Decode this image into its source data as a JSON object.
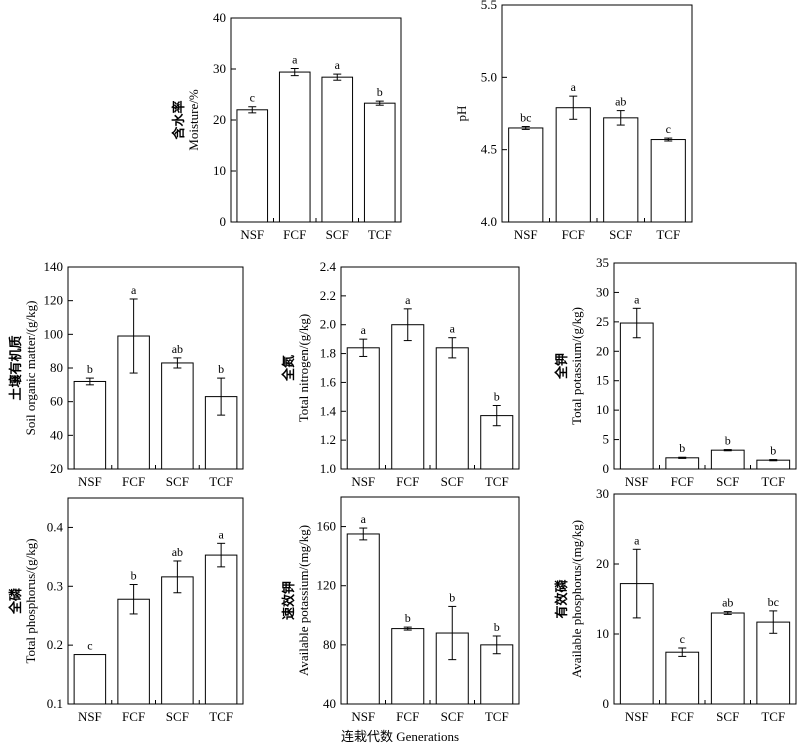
{
  "figure": {
    "xlabel": "连栽代数 Generations"
  },
  "chart_data": [
    {
      "type": "bar",
      "id": "moisture",
      "ylabel_cn": "含水率",
      "ylabel": "Moisture/%",
      "categories": [
        "NSF",
        "FCF",
        "SCF",
        "TCF"
      ],
      "values": [
        22.0,
        29.4,
        28.4,
        23.3
      ],
      "errors": [
        0.6,
        0.7,
        0.6,
        0.4
      ],
      "letters": [
        "c",
        "a",
        "a",
        "b"
      ],
      "ylim": [
        0,
        40
      ],
      "yticks": [
        "0",
        "10",
        "20",
        "30",
        "40"
      ]
    },
    {
      "type": "bar",
      "id": "ph",
      "ylabel_cn": "",
      "ylabel": "pH",
      "categories": [
        "NSF",
        "FCF",
        "SCF",
        "TCF"
      ],
      "values": [
        4.65,
        4.79,
        4.72,
        4.57
      ],
      "errors": [
        0.01,
        0.08,
        0.05,
        0.01
      ],
      "letters": [
        "bc",
        "a",
        "ab",
        "c"
      ],
      "ylim": [
        4.0,
        5.5
      ],
      "yticks": [
        "4.0",
        "4.5",
        "5.0",
        "5.5"
      ]
    },
    {
      "type": "bar",
      "id": "som",
      "ylabel_cn": "土壤有机质",
      "ylabel": "Soil organic matter/(g/kg)",
      "categories": [
        "NSF",
        "FCF",
        "SCF",
        "TCF"
      ],
      "values": [
        72,
        99,
        83,
        63
      ],
      "errors": [
        2,
        22,
        3,
        11
      ],
      "letters": [
        "b",
        "a",
        "ab",
        "b"
      ],
      "ylim": [
        20,
        140
      ],
      "yticks": [
        "20",
        "40",
        "60",
        "80",
        "100",
        "120",
        "140"
      ]
    },
    {
      "type": "bar",
      "id": "tn",
      "ylabel_cn": "全氮",
      "ylabel": "Total nitrogen/(g/kg)",
      "categories": [
        "NSF",
        "FCF",
        "SCF",
        "TCF"
      ],
      "values": [
        1.84,
        2.0,
        1.84,
        1.37
      ],
      "errors": [
        0.06,
        0.11,
        0.07,
        0.07
      ],
      "letters": [
        "a",
        "a",
        "a",
        "b"
      ],
      "ylim": [
        1.0,
        2.4
      ],
      "yticks": [
        "1.0",
        "1.2",
        "1.4",
        "1.6",
        "1.8",
        "2.0",
        "2.2",
        "2.4"
      ]
    },
    {
      "type": "bar",
      "id": "tk",
      "ylabel_cn": "全钾",
      "ylabel": "Total potassium/(g/kg)",
      "categories": [
        "NSF",
        "FCF",
        "SCF",
        "TCF"
      ],
      "values": [
        24.8,
        1.9,
        3.2,
        1.5
      ],
      "errors": [
        2.5,
        0.1,
        0.1,
        0.1
      ],
      "letters": [
        "a",
        "b",
        "b",
        "b"
      ],
      "ylim": [
        0,
        35
      ],
      "yticks": [
        "0",
        "5",
        "10",
        "15",
        "20",
        "25",
        "30",
        "35"
      ]
    },
    {
      "type": "bar",
      "id": "tp",
      "ylabel_cn": "全磷",
      "ylabel": "Total phosphorus/(g/kg)",
      "categories": [
        "NSF",
        "FCF",
        "SCF",
        "TCF"
      ],
      "values": [
        0.184,
        0.278,
        0.316,
        0.353
      ],
      "errors": [
        0.0,
        0.025,
        0.027,
        0.02
      ],
      "letters": [
        "c",
        "b",
        "ab",
        "a"
      ],
      "ylim": [
        0.1,
        0.45
      ],
      "yticks": [
        "0.1",
        "0.2",
        "0.3",
        "0.4"
      ]
    },
    {
      "type": "bar",
      "id": "ak",
      "ylabel_cn": "速效钾",
      "ylabel": "Available potassium/(mg/kg)",
      "categories": [
        "NSF",
        "FCF",
        "SCF",
        "TCF"
      ],
      "values": [
        155,
        91,
        88,
        80
      ],
      "errors": [
        4,
        1,
        18,
        6
      ],
      "letters": [
        "a",
        "b",
        "b",
        "b"
      ],
      "ylim": [
        40,
        180
      ],
      "yticks": [
        "40",
        "80",
        "120",
        "160"
      ]
    },
    {
      "type": "bar",
      "id": "ap",
      "ylabel_cn": "有效磷",
      "ylabel": "Available phosphorus/(mg/kg)",
      "categories": [
        "NSF",
        "FCF",
        "SCF",
        "TCF"
      ],
      "values": [
        17.2,
        7.4,
        13.0,
        11.7
      ],
      "errors": [
        4.9,
        0.6,
        0.2,
        1.6
      ],
      "letters": [
        "a",
        "c",
        "ab",
        "bc"
      ],
      "ylim": [
        0,
        30
      ],
      "yticks": [
        "0",
        "10",
        "20",
        "30"
      ]
    }
  ]
}
